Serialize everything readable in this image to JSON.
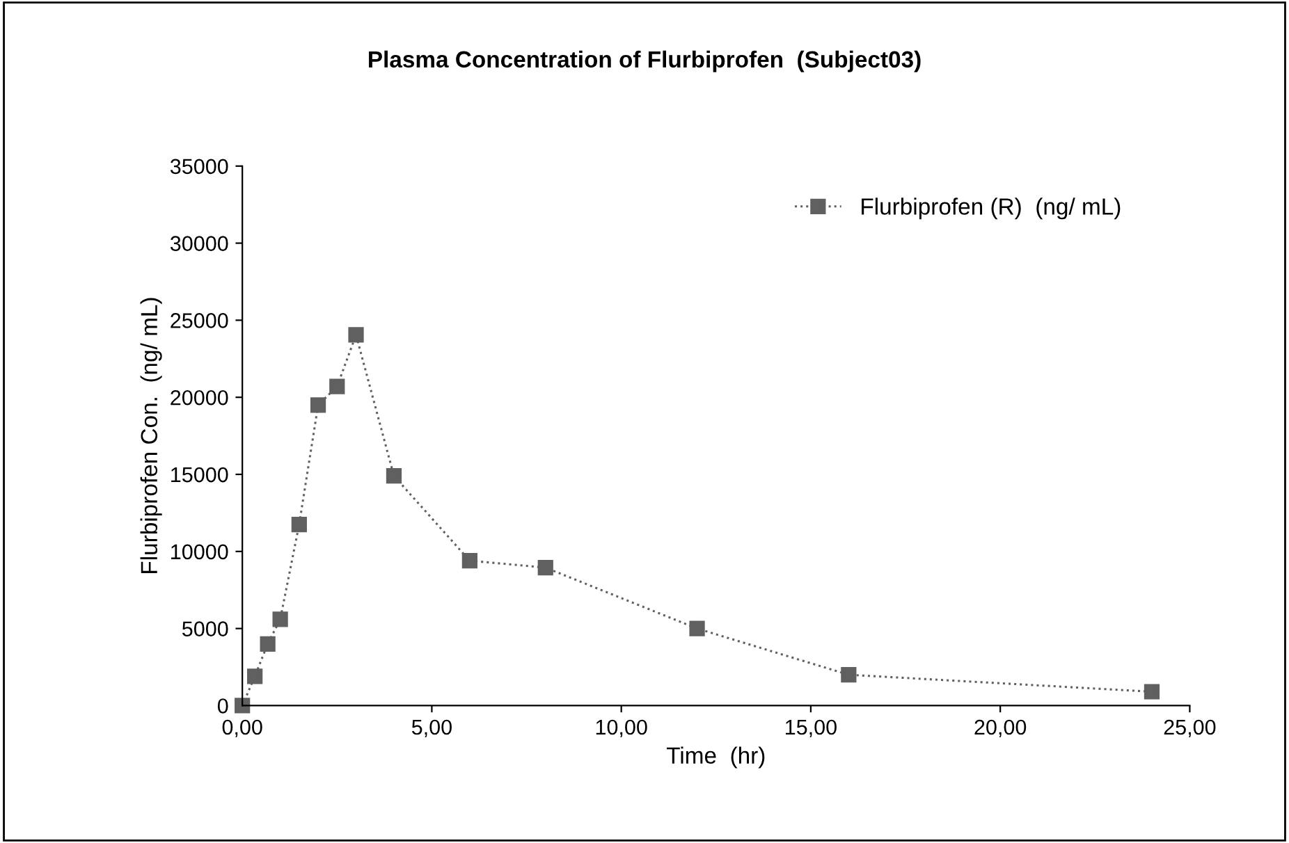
{
  "chart_data": {
    "type": "line",
    "title": "Plasma Concentration of Flurbiprofen  (Subject03)",
    "xlabel": "Time  (hr)",
    "ylabel": "Flurbiprofen Con.  (ng/ mL)",
    "x": [
      0,
      0.33,
      0.67,
      1,
      1.5,
      2,
      2.5,
      3,
      4,
      6,
      8,
      12,
      16,
      24
    ],
    "series": [
      {
        "name": "Flurbiprofen (R)  (ng/ mL)",
        "color": "#606060",
        "values": [
          0,
          1900,
          4000,
          5600,
          11750,
          19500,
          20700,
          24050,
          14900,
          9400,
          8950,
          5000,
          2000,
          900
        ]
      }
    ],
    "xlim": [
      0,
      25
    ],
    "xticks": [
      {
        "value": 0,
        "label": "0,00"
      },
      {
        "value": 5,
        "label": "5,00"
      },
      {
        "value": 10,
        "label": "10,00"
      },
      {
        "value": 15,
        "label": "15,00"
      },
      {
        "value": 20,
        "label": "20,00"
      },
      {
        "value": 25,
        "label": "25,00"
      }
    ],
    "ylim": [
      0,
      35000
    ],
    "yticks": [
      0,
      5000,
      10000,
      15000,
      20000,
      25000,
      30000,
      35000
    ],
    "marker": "square",
    "line_style": "dotted",
    "legend": "top right",
    "grid": false
  }
}
